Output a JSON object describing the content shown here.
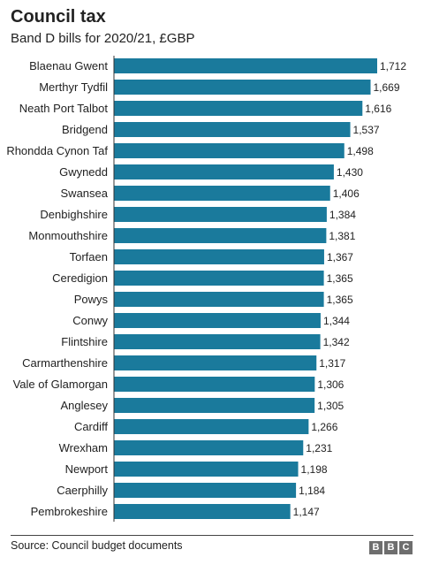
{
  "header": {
    "title": "Council tax",
    "subtitle": "Band D bills for 2020/21, £GBP"
  },
  "footer": {
    "source": "Source: Council budget documents",
    "logo_letters": [
      "B",
      "B",
      "C"
    ]
  },
  "colors": {
    "bar": "#1a7a9c",
    "axis": "#333333",
    "text": "#222222"
  },
  "chart_data": {
    "type": "bar",
    "orientation": "horizontal",
    "title": "Council tax",
    "subtitle": "Band D bills for 2020/21, £GBP",
    "categories": [
      "Blaenau Gwent",
      "Merthyr Tydfil",
      "Neath Port Talbot",
      "Bridgend",
      "Rhondda Cynon Taf",
      "Gwynedd",
      "Swansea",
      "Denbighshire",
      "Monmouthshire",
      "Torfaen",
      "Ceredigion",
      "Powys",
      "Conwy",
      "Flintshire",
      "Carmarthenshire",
      "Vale of Glamorgan",
      "Anglesey",
      "Cardiff",
      "Wrexham",
      "Newport",
      "Caerphilly",
      "Pembrokeshire"
    ],
    "values": [
      1712,
      1669,
      1616,
      1537,
      1498,
      1430,
      1406,
      1384,
      1381,
      1367,
      1365,
      1365,
      1344,
      1342,
      1317,
      1306,
      1305,
      1266,
      1231,
      1198,
      1184,
      1147
    ],
    "value_labels": [
      "1,712",
      "1,669",
      "1,616",
      "1,537",
      "1,498",
      "1,430",
      "1,406",
      "1,384",
      "1,381",
      "1,367",
      "1,365",
      "1,365",
      "1,344",
      "1,342",
      "1,317",
      "1,306",
      "1,305",
      "1,266",
      "1,231",
      "1,198",
      "1,184",
      "1,147"
    ],
    "xlim": [
      0,
      1712
    ],
    "grid": false,
    "legend": "none"
  }
}
